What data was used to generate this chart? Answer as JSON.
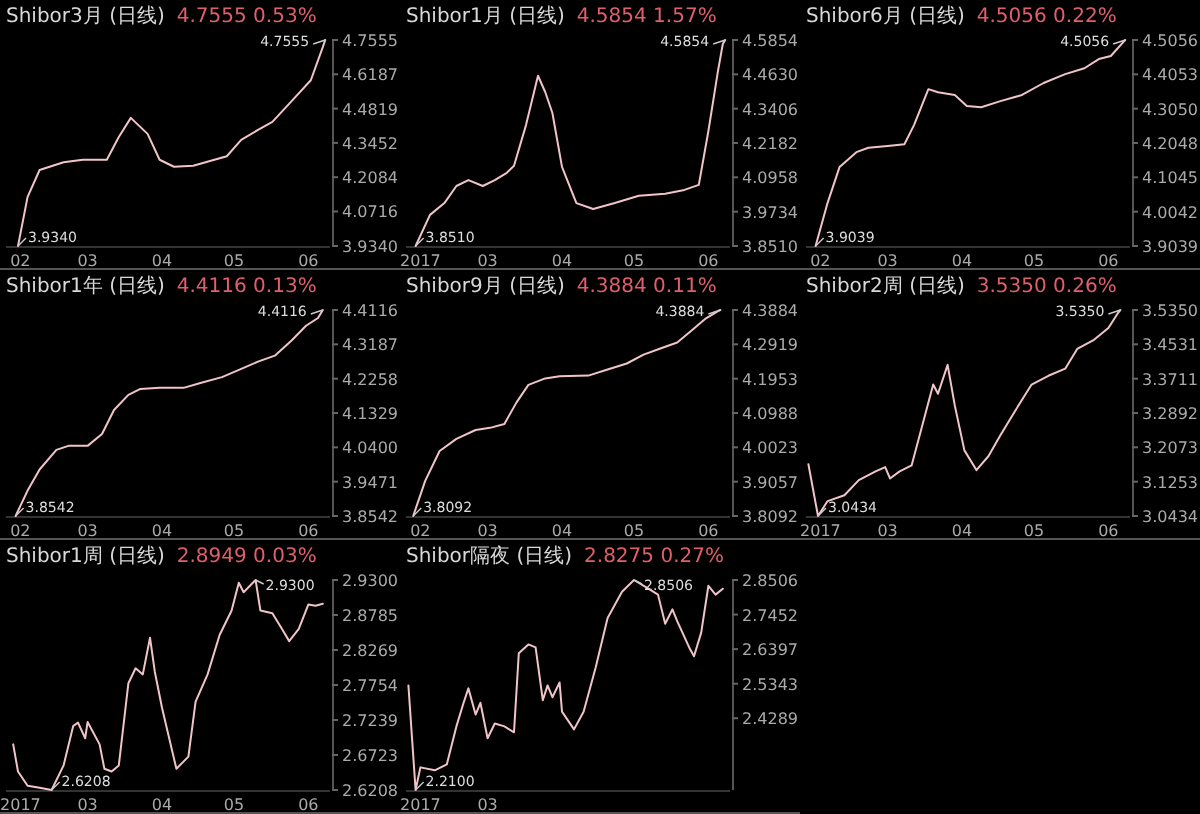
{
  "chart_data": [
    {
      "type": "line",
      "title": "Shibor3月 (日线)",
      "subtitle": "4.7555  0.53%",
      "color": "#f0c4c8",
      "grid": false,
      "xlim": [
        "2017-01-26",
        "2017-06-10"
      ],
      "xticks": [
        {
          "value": "2017-02-01",
          "label": "02"
        },
        {
          "value": "2017-03-01",
          "label": "03"
        },
        {
          "value": "2017-04-01",
          "label": "04"
        },
        {
          "value": "2017-05-01",
          "label": "05"
        },
        {
          "value": "2017-06-01",
          "label": "06"
        }
      ],
      "ylim": [
        3.934,
        4.7555
      ],
      "yticks": [
        4.7555,
        4.6187,
        4.4819,
        4.3452,
        4.2084,
        4.0716,
        {
          "value": 3.934,
          "label": "3.9340"
        }
      ],
      "x": [
        "2017-01-31",
        "2017-02-04",
        "2017-02-09",
        "2017-02-19",
        "2017-02-27",
        "2017-03-09",
        "2017-03-14",
        "2017-03-19",
        "2017-03-26",
        "2017-03-31",
        "2017-04-06",
        "2017-04-14",
        "2017-04-28",
        "2017-05-04",
        "2017-05-11",
        "2017-05-17",
        "2017-05-25",
        "2017-06-02",
        "2017-06-07",
        "2017-06-08"
      ],
      "values": [
        3.934,
        4.13,
        4.237,
        4.268,
        4.278,
        4.278,
        4.369,
        4.445,
        4.381,
        4.278,
        4.25,
        4.254,
        4.292,
        4.357,
        4.397,
        4.429,
        4.512,
        4.595,
        4.727,
        4.7555
      ],
      "annotations": [
        {
          "text": "4.7555",
          "x": "2017-06-08",
          "y": 4.7555
        },
        {
          "text": "3.9340",
          "x": "2017-01-31",
          "y": 3.934
        }
      ]
    },
    {
      "type": "line",
      "title": "Shibor1月 (日线)",
      "subtitle": "4.5854  1.57%",
      "color": "#f0c4c8",
      "grid": false,
      "xlim": [
        "2017-01-26",
        "2017-06-10"
      ],
      "xticks": [
        {
          "value": "2017-02-01",
          "label": "2017"
        },
        {
          "value": "2017-03-01",
          "label": "03"
        },
        {
          "value": "2017-04-01",
          "label": "04"
        },
        {
          "value": "2017-05-01",
          "label": "05"
        },
        {
          "value": "2017-06-01",
          "label": "06"
        }
      ],
      "ylim": [
        3.851,
        4.5854
      ],
      "yticks": [
        4.5854,
        {
          "value": 4.463,
          "label": "4.4630"
        },
        4.3406,
        4.2182,
        4.0958,
        3.9734,
        {
          "value": 3.851,
          "label": "3.8510"
        }
      ],
      "x": [
        "2017-01-30",
        "2017-02-05",
        "2017-02-11",
        "2017-02-16",
        "2017-02-21",
        "2017-02-27",
        "2017-03-04",
        "2017-03-09",
        "2017-03-12",
        "2017-03-17",
        "2017-03-22",
        "2017-03-25",
        "2017-03-28",
        "2017-04-01",
        "2017-04-07",
        "2017-04-14",
        "2017-04-23",
        "2017-05-03",
        "2017-05-14",
        "2017-05-22",
        "2017-05-28",
        "2017-06-01",
        "2017-06-05",
        "2017-06-07",
        "2017-06-08"
      ],
      "values": [
        3.851,
        3.962,
        4.004,
        4.065,
        4.086,
        4.065,
        4.086,
        4.112,
        4.137,
        4.282,
        4.458,
        4.4,
        4.325,
        4.133,
        4.004,
        3.983,
        4.004,
        4.03,
        4.037,
        4.051,
        4.069,
        4.261,
        4.475,
        4.571,
        4.5854
      ],
      "annotations": [
        {
          "text": "4.5854",
          "x": "2017-06-08",
          "y": 4.5854
        },
        {
          "text": "3.8510",
          "x": "2017-01-30",
          "y": 3.851
        }
      ]
    },
    {
      "type": "line",
      "title": "Shibor6月 (日线)",
      "subtitle": "4.5056  0.22%",
      "color": "#f0c4c8",
      "grid": false,
      "xlim": [
        "2017-01-26",
        "2017-06-10"
      ],
      "xticks": [
        {
          "value": "2017-02-01",
          "label": "02"
        },
        {
          "value": "2017-03-01",
          "label": "03"
        },
        {
          "value": "2017-04-01",
          "label": "04"
        },
        {
          "value": "2017-05-01",
          "label": "05"
        },
        {
          "value": "2017-06-01",
          "label": "06"
        }
      ],
      "ylim": [
        3.9039,
        4.5056
      ],
      "yticks": [
        4.5056,
        4.4053,
        {
          "value": 4.305,
          "label": "4.3050"
        },
        4.2048,
        4.1045,
        4.0042,
        3.9039
      ],
      "x": [
        "2017-01-30",
        "2017-02-04",
        "2017-02-09",
        "2017-02-16",
        "2017-02-21",
        "2017-03-01",
        "2017-03-08",
        "2017-03-12",
        "2017-03-18",
        "2017-03-22",
        "2017-03-29",
        "2017-04-03",
        "2017-04-09",
        "2017-04-17",
        "2017-04-26",
        "2017-05-05",
        "2017-05-14",
        "2017-05-22",
        "2017-05-28",
        "2017-06-02",
        "2017-06-07",
        "2017-06-08"
      ],
      "values": [
        3.9039,
        4.03,
        4.135,
        4.178,
        4.191,
        4.196,
        4.201,
        4.257,
        4.362,
        4.353,
        4.345,
        4.313,
        4.309,
        4.327,
        4.345,
        4.38,
        4.406,
        4.423,
        4.45,
        4.459,
        4.498,
        4.5056
      ],
      "annotations": [
        {
          "text": "4.5056",
          "x": "2017-06-08",
          "y": 4.5056
        },
        {
          "text": "3.9039",
          "x": "2017-01-30",
          "y": 3.9039
        }
      ]
    },
    {
      "type": "line",
      "title": "Shibor1年 (日线)",
      "subtitle": "4.4116  0.13%",
      "color": "#f0c4c8",
      "grid": false,
      "xlim": [
        "2017-01-26",
        "2017-06-10"
      ],
      "xticks": [
        {
          "value": "2017-02-01",
          "label": "02"
        },
        {
          "value": "2017-03-01",
          "label": "03"
        },
        {
          "value": "2017-04-01",
          "label": "04"
        },
        {
          "value": "2017-05-01",
          "label": "05"
        },
        {
          "value": "2017-06-01",
          "label": "06"
        }
      ],
      "ylim": [
        3.8542,
        4.4116
      ],
      "yticks": [
        4.4116,
        4.3187,
        4.2258,
        4.1329,
        {
          "value": 4.04,
          "label": "4.0400"
        },
        3.9471,
        3.8542
      ],
      "x": [
        "2017-01-30",
        "2017-02-04",
        "2017-02-09",
        "2017-02-16",
        "2017-02-21",
        "2017-03-01",
        "2017-03-07",
        "2017-03-12",
        "2017-03-18",
        "2017-03-23",
        "2017-03-31",
        "2017-04-10",
        "2017-04-17",
        "2017-04-26",
        "2017-05-05",
        "2017-05-11",
        "2017-05-18",
        "2017-05-25",
        "2017-05-31",
        "2017-06-05",
        "2017-06-07"
      ],
      "values": [
        3.8542,
        3.923,
        3.98,
        4.033,
        4.044,
        4.044,
        4.076,
        4.141,
        4.182,
        4.198,
        4.201,
        4.201,
        4.214,
        4.23,
        4.255,
        4.272,
        4.288,
        4.329,
        4.369,
        4.39,
        4.4116
      ],
      "annotations": [
        {
          "text": "4.4116",
          "x": "2017-06-07",
          "y": 4.4116
        },
        {
          "text": "3.8542",
          "x": "2017-01-30",
          "y": 3.8542
        }
      ]
    },
    {
      "type": "line",
      "title": "Shibor9月 (日线)",
      "subtitle": "4.3884  0.11%",
      "color": "#f0c4c8",
      "grid": false,
      "xlim": [
        "2017-01-26",
        "2017-06-10"
      ],
      "xticks": [
        {
          "value": "2017-02-01",
          "label": "02"
        },
        {
          "value": "2017-03-01",
          "label": "03"
        },
        {
          "value": "2017-04-01",
          "label": "04"
        },
        {
          "value": "2017-05-01",
          "label": "05"
        },
        {
          "value": "2017-06-01",
          "label": "06"
        }
      ],
      "ylim": [
        3.8092,
        4.3884
      ],
      "yticks": [
        4.3884,
        4.2919,
        4.1953,
        4.0988,
        4.0023,
        3.9057,
        3.8092
      ],
      "x": [
        "2017-01-29",
        "2017-02-03",
        "2017-02-09",
        "2017-02-16",
        "2017-02-24",
        "2017-03-02",
        "2017-03-08",
        "2017-03-13",
        "2017-03-18",
        "2017-03-25",
        "2017-03-31",
        "2017-04-12",
        "2017-04-20",
        "2017-04-28",
        "2017-05-05",
        "2017-05-12",
        "2017-05-19",
        "2017-05-25",
        "2017-05-31",
        "2017-06-05",
        "2017-06-06"
      ],
      "values": [
        3.8092,
        3.908,
        3.992,
        4.026,
        4.051,
        4.057,
        4.068,
        4.128,
        4.178,
        4.196,
        4.202,
        4.204,
        4.221,
        4.238,
        4.263,
        4.28,
        4.297,
        4.331,
        4.365,
        4.385,
        4.3884
      ],
      "annotations": [
        {
          "text": "4.3884",
          "x": "2017-06-06",
          "y": 4.3884
        },
        {
          "text": "3.8092",
          "x": "2017-01-29",
          "y": 3.8092
        }
      ]
    },
    {
      "type": "line",
      "title": "Shibor2周 (日线)",
      "subtitle": "3.5350  0.26%",
      "color": "#f0c4c8",
      "grid": false,
      "xlim": [
        "2017-01-26",
        "2017-06-10"
      ],
      "xticks": [
        {
          "value": "2017-02-01",
          "label": "2017"
        },
        {
          "value": "2017-03-01",
          "label": "03"
        },
        {
          "value": "2017-04-01",
          "label": "04"
        },
        {
          "value": "2017-05-01",
          "label": "05"
        },
        {
          "value": "2017-06-01",
          "label": "06"
        }
      ],
      "ylim": [
        3.0434,
        3.535
      ],
      "yticks": [
        {
          "value": 3.535,
          "label": "3.5350"
        },
        3.4531,
        3.3711,
        3.2892,
        3.2073,
        3.1253,
        3.0434
      ],
      "x": [
        "2017-01-27",
        "2017-01-31",
        "2017-02-04",
        "2017-02-11",
        "2017-02-17",
        "2017-02-24",
        "2017-02-28",
        "2017-03-02",
        "2017-03-06",
        "2017-03-11",
        "2017-03-15",
        "2017-03-20",
        "2017-03-22",
        "2017-03-26",
        "2017-03-29",
        "2017-04-02",
        "2017-04-07",
        "2017-04-12",
        "2017-04-17",
        "2017-04-23",
        "2017-04-30",
        "2017-05-07",
        "2017-05-14",
        "2017-05-19",
        "2017-05-26",
        "2017-06-01",
        "2017-06-05",
        "2017-06-06"
      ],
      "values": [
        3.167,
        3.0434,
        3.079,
        3.093,
        3.129,
        3.15,
        3.16,
        3.133,
        3.15,
        3.164,
        3.25,
        3.357,
        3.335,
        3.404,
        3.307,
        3.2,
        3.153,
        3.186,
        3.236,
        3.293,
        3.357,
        3.378,
        3.395,
        3.442,
        3.464,
        3.492,
        3.528,
        3.535
      ],
      "annotations": [
        {
          "text": "3.5350",
          "x": "2017-06-06",
          "y": 3.535
        },
        {
          "text": "3.0434",
          "x": "2017-01-31",
          "y": 3.0434
        }
      ]
    },
    {
      "type": "line",
      "title": "Shibor1周 (日线)",
      "subtitle": "2.8949  0.03%",
      "color": "#f0c4c8",
      "grid": false,
      "xlim": [
        "2017-01-26",
        "2017-06-10"
      ],
      "xticks": [
        {
          "value": "2017-02-01",
          "label": "2017"
        },
        {
          "value": "2017-03-01",
          "label": "03"
        },
        {
          "value": "2017-04-01",
          "label": "04"
        },
        {
          "value": "2017-05-01",
          "label": "05"
        },
        {
          "value": "2017-06-01",
          "label": "06"
        }
      ],
      "ylim": [
        2.6208,
        2.93
      ],
      "yticks": [
        {
          "value": 2.93,
          "label": "2.9300"
        },
        2.8785,
        2.8269,
        2.7754,
        2.7239,
        2.6723,
        2.6208
      ],
      "x": [
        "2017-01-29",
        "2017-01-31",
        "2017-02-04",
        "2017-02-09",
        "2017-02-14",
        "2017-02-19",
        "2017-02-23",
        "2017-02-25",
        "2017-02-28",
        "2017-03-01",
        "2017-03-06",
        "2017-03-08",
        "2017-03-11",
        "2017-03-14",
        "2017-03-18",
        "2017-03-21",
        "2017-03-24",
        "2017-03-27",
        "2017-03-29",
        "2017-04-01",
        "2017-04-07",
        "2017-04-12",
        "2017-04-15",
        "2017-04-20",
        "2017-04-25",
        "2017-04-30",
        "2017-05-03",
        "2017-05-05",
        "2017-05-10",
        "2017-05-12",
        "2017-05-17",
        "2017-05-21",
        "2017-05-24",
        "2017-05-28",
        "2017-06-01",
        "2017-06-04",
        "2017-06-07"
      ],
      "values": [
        2.688,
        2.648,
        2.627,
        2.624,
        2.6208,
        2.657,
        2.715,
        2.72,
        2.697,
        2.721,
        2.688,
        2.652,
        2.648,
        2.657,
        2.778,
        2.8,
        2.791,
        2.845,
        2.795,
        2.742,
        2.652,
        2.67,
        2.751,
        2.791,
        2.849,
        2.885,
        2.926,
        2.912,
        2.93,
        2.885,
        2.881,
        2.858,
        2.84,
        2.858,
        2.894,
        2.892,
        2.895
      ],
      "annotations": [
        {
          "text": "2.9300",
          "x": "2017-05-10",
          "y": 2.93
        },
        {
          "text": "2.6208",
          "x": "2017-02-14",
          "y": 2.6208
        }
      ]
    },
    {
      "type": "line",
      "title": "Shibor隔夜 (日线)",
      "subtitle": "2.8275  0.27%",
      "color": "#f0c4c8",
      "grid": false,
      "xlim": [
        "2017-01-26",
        "2017-06-10"
      ],
      "xticks": [
        {
          "value": "2017-02-01",
          "label": "2017"
        },
        {
          "value": "2017-03-01",
          "label": "03"
        }
      ],
      "ylim": [
        2.21,
        2.8506
      ],
      "yticks": [
        2.8506,
        2.7452,
        2.6397,
        2.5343,
        2.4289
      ],
      "x": [
        "2017-01-27",
        "2017-01-30",
        "2017-02-01",
        "2017-02-07",
        "2017-02-12",
        "2017-02-16",
        "2017-02-19",
        "2017-02-21",
        "2017-02-24",
        "2017-02-26",
        "2017-03-01",
        "2017-03-04",
        "2017-03-08",
        "2017-03-12",
        "2017-03-14",
        "2017-03-18",
        "2017-03-21",
        "2017-03-24",
        "2017-03-26",
        "2017-03-28",
        "2017-03-31",
        "2017-04-01",
        "2017-04-06",
        "2017-04-10",
        "2017-04-15",
        "2017-04-20",
        "2017-04-26",
        "2017-05-01",
        "2017-05-07",
        "2017-05-11",
        "2017-05-14",
        "2017-05-17",
        "2017-05-19",
        "2017-05-24",
        "2017-05-26",
        "2017-05-29",
        "2017-06-01",
        "2017-06-04",
        "2017-06-07"
      ],
      "values": [
        2.529,
        2.21,
        2.279,
        2.27,
        2.288,
        2.404,
        2.476,
        2.52,
        2.44,
        2.476,
        2.368,
        2.413,
        2.404,
        2.386,
        2.627,
        2.654,
        2.645,
        2.484,
        2.529,
        2.493,
        2.538,
        2.449,
        2.395,
        2.449,
        2.583,
        2.735,
        2.815,
        2.8506,
        2.824,
        2.806,
        2.717,
        2.761,
        2.725,
        2.645,
        2.618,
        2.69,
        2.833,
        2.806,
        2.824
      ],
      "annotations": [
        {
          "text": "2.8506",
          "x": "2017-05-01",
          "y": 2.8506
        },
        {
          "text": "2.2100",
          "x": "2017-01-30",
          "y": 2.21
        }
      ]
    }
  ]
}
